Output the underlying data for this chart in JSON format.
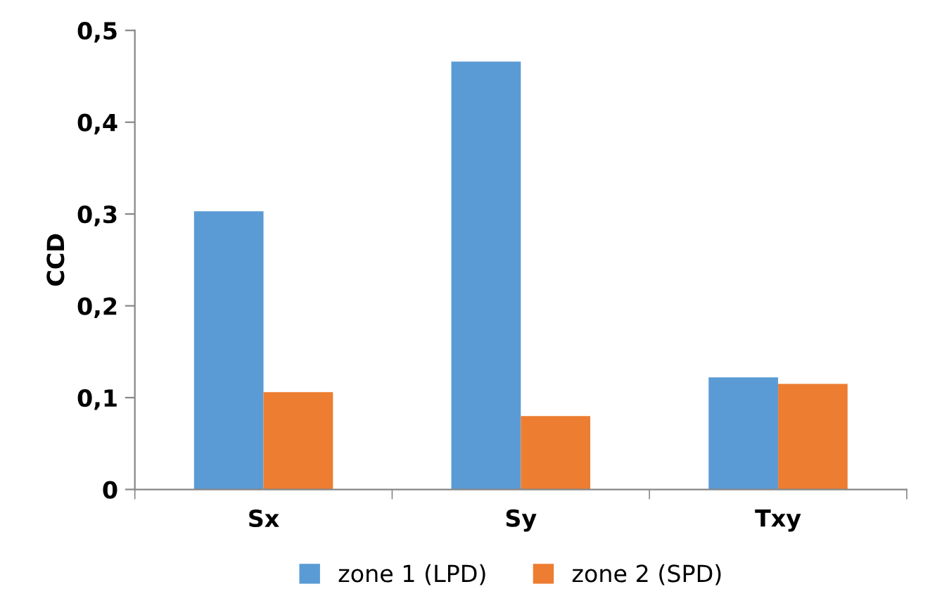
{
  "chart_data": {
    "type": "bar",
    "ylabel": "CCD",
    "categories": [
      "Sx",
      "Sy",
      "Txy"
    ],
    "series": [
      {
        "name": "zone 1 (LPD)",
        "color": "#5b9bd5",
        "values": [
          0.303,
          0.466,
          0.122
        ]
      },
      {
        "name": "zone 2 (SPD)",
        "color": "#ed7d31",
        "values": [
          0.106,
          0.08,
          0.115
        ]
      }
    ],
    "ylim": [
      0,
      0.5
    ],
    "yticks": [
      0,
      {
        "value": 0.1,
        "label": "0,1"
      },
      {
        "value": 0.2,
        "label": "0,2"
      },
      {
        "value": 0.3,
        "label": "0,3"
      },
      {
        "value": 0.4,
        "label": "0,4"
      },
      {
        "value": 0.5,
        "label": "0,5"
      }
    ],
    "grid": false,
    "legend": "bottom"
  }
}
